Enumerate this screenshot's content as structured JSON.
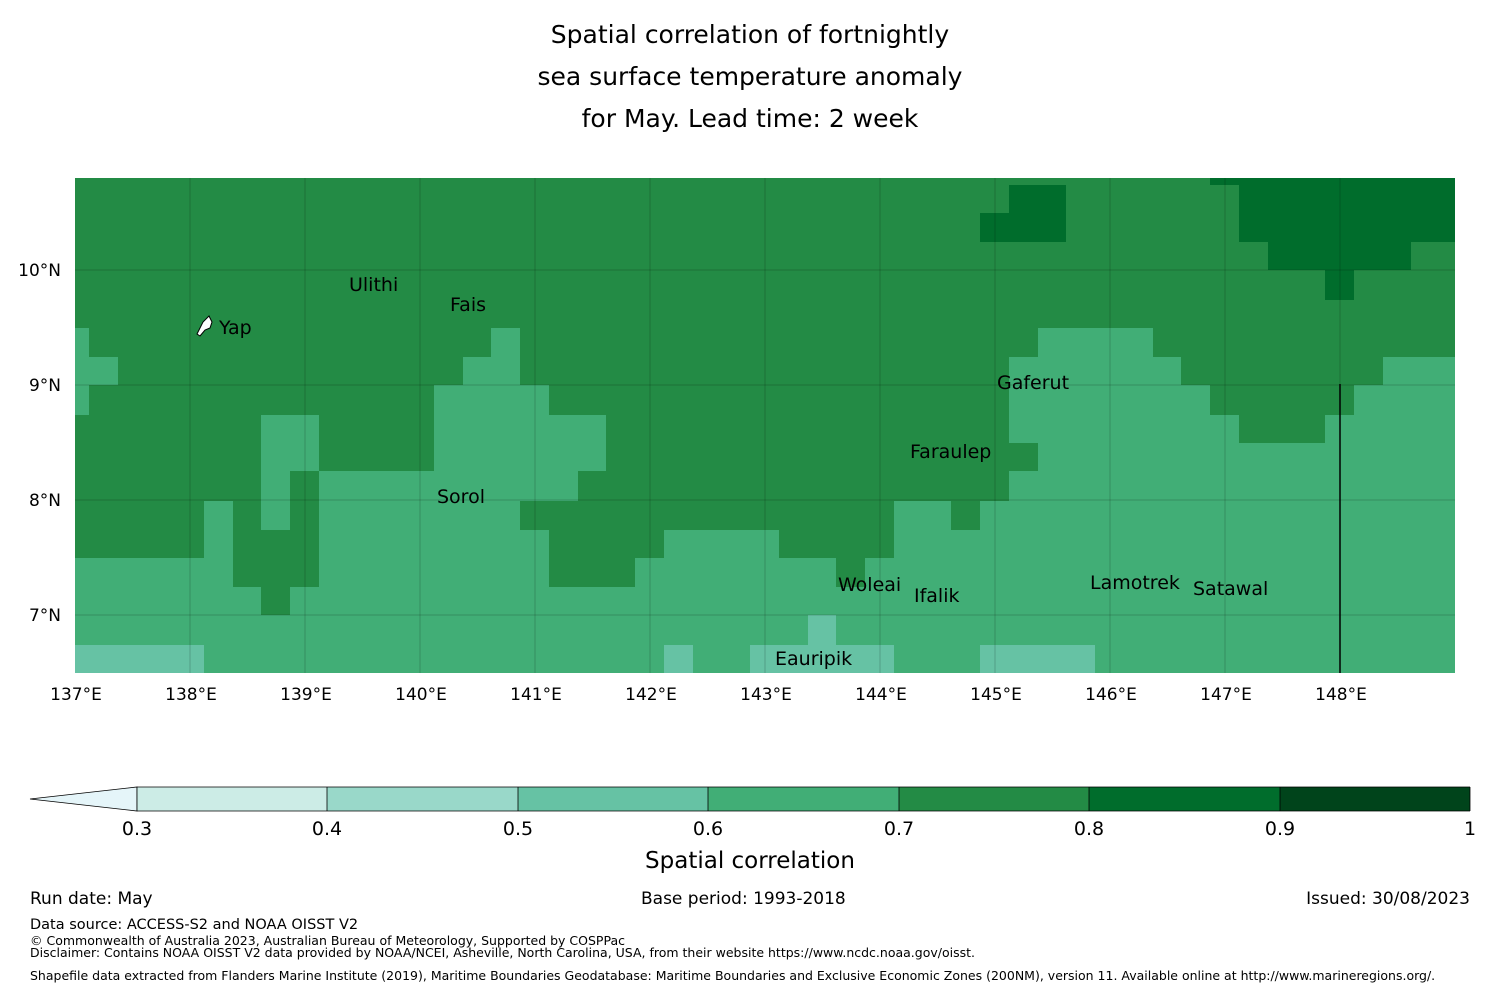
{
  "title": [
    "Spatial correlation of fortnightly",
    "sea surface temperature anomaly",
    "for May. Lead time: 2 week"
  ],
  "map": {
    "lat_ticks": [
      "10°N",
      "9°N",
      "8°N",
      "7°N"
    ],
    "lon_ticks": [
      "137°E",
      "138°E",
      "139°E",
      "140°E",
      "141°E",
      "142°E",
      "143°E",
      "144°E",
      "145°E",
      "146°E",
      "147°E",
      "148°E"
    ],
    "islands": [
      "Ulithi",
      "Fais",
      "Yap",
      "Gaferut",
      "Faraulep",
      "Sorol",
      "Woleai",
      "Ifalik",
      "Lamotrek",
      "Satawal",
      "Eauripik"
    ]
  },
  "colorbar": {
    "title": "Spatial correlation",
    "ticks": [
      "0.3",
      "0.4",
      "0.5",
      "0.6",
      "0.7",
      "0.8",
      "0.9",
      "1"
    ],
    "colors": [
      "#e5f5f9",
      "#ccece6",
      "#99d8c9",
      "#66c2a4",
      "#41ae76",
      "#238b45",
      "#006d2c",
      "#00441b"
    ]
  },
  "footer": {
    "run_date": "Run date: May",
    "base_period": "Base period: 1993-2018",
    "issued": "Issued: 30/08/2023",
    "data_source": "Data source: ACCESS-S2 and NOAA OISST V2",
    "copyright": "© Commonwealth of Australia 2023, Australian Bureau of Meteorology, Supported by COSPPac",
    "disclaimer": "Disclaimer: Contains NOAA OISST V2 data provided by NOAA/NCEI, Asheville, North Carolina, USA, from their website https://www.ncdc.noaa.gov/oisst.",
    "shapefile": "Shapefile data extracted from Flanders Marine Institute (2019), Maritime Boundaries Geodatabase: Maritime Boundaries and Exclusive Economic Zones (200NM), version 11. Available online at http://www.marineregions.org/."
  }
}
